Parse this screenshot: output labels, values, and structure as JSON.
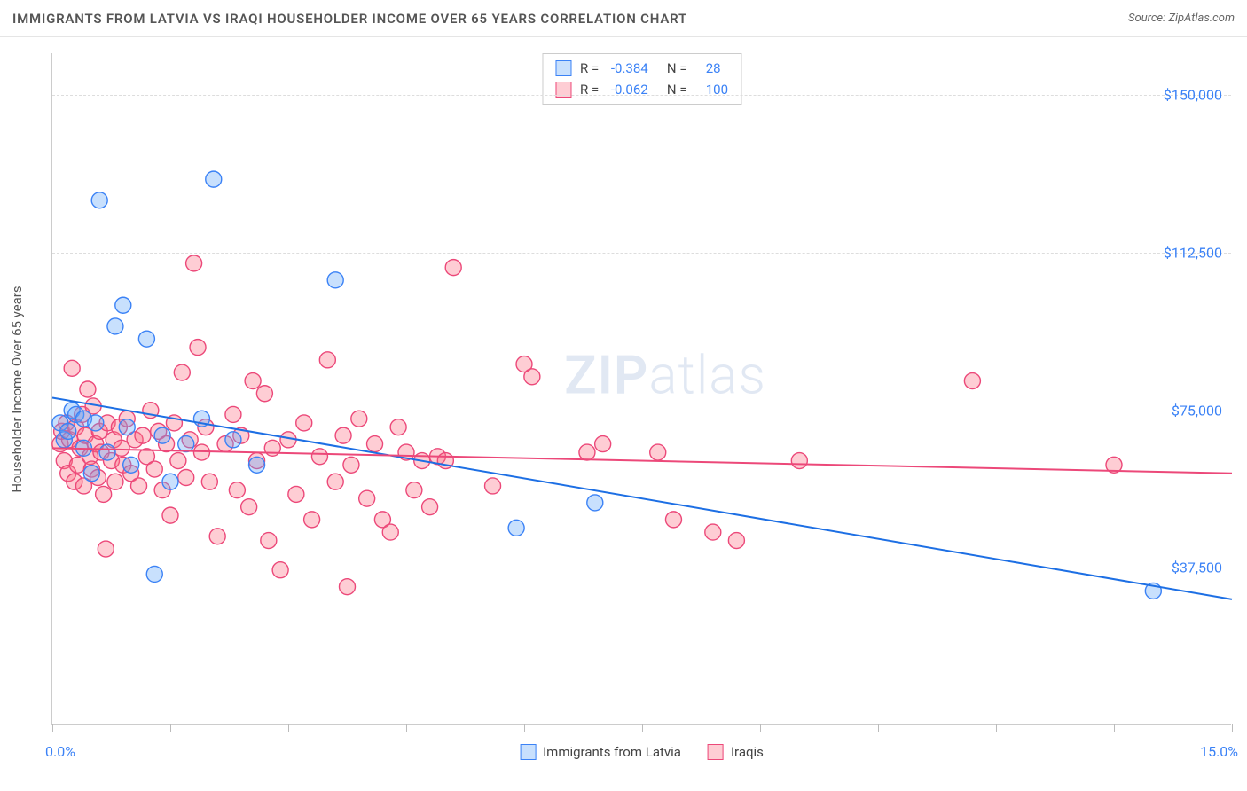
{
  "title": "IMMIGRANTS FROM LATVIA VS IRAQI HOUSEHOLDER INCOME OVER 65 YEARS CORRELATION CHART",
  "source_prefix": "Source: ",
  "source_name": "ZipAtlas.com",
  "watermark_a": "ZIP",
  "watermark_b": "atlas",
  "y_axis_title": "Householder Income Over 65 years",
  "chart": {
    "type": "scatter",
    "xlim": [
      0,
      15
    ],
    "ylim": [
      0,
      160000
    ],
    "x_tick_positions": [
      0,
      1.5,
      3,
      4.5,
      6,
      7.5,
      9,
      10.5,
      12,
      13.5,
      15
    ],
    "x_label_min": "0.0%",
    "x_label_max": "15.0%",
    "y_ticks": [
      {
        "v": 37500,
        "label": "$37,500"
      },
      {
        "v": 75000,
        "label": "$75,000"
      },
      {
        "v": 112500,
        "label": "$112,500"
      },
      {
        "v": 150000,
        "label": "$150,000"
      }
    ],
    "grid_color": "#dddddd",
    "axis_color": "#cccccc",
    "background_color": "#ffffff",
    "tick_label_color": "#3b82f6",
    "marker_radius": 9,
    "marker_stroke_width": 1.4,
    "trend_line_width": 2,
    "series": [
      {
        "name": "Immigrants from Latvia",
        "fill": "rgba(96,165,250,0.35)",
        "stroke": "#3b82f6",
        "trend_color": "#1d6fe4",
        "stats": {
          "R": "-0.384",
          "N": "28"
        },
        "trend": {
          "x1": 0,
          "y1": 78000,
          "x2": 15,
          "y2": 30000
        },
        "points": [
          [
            0.1,
            72000
          ],
          [
            0.15,
            68000
          ],
          [
            0.2,
            70000
          ],
          [
            0.25,
            75000
          ],
          [
            0.3,
            74000
          ],
          [
            0.4,
            66000
          ],
          [
            0.4,
            73000
          ],
          [
            0.5,
            60000
          ],
          [
            0.55,
            72000
          ],
          [
            0.6,
            125000
          ],
          [
            0.7,
            65000
          ],
          [
            0.8,
            95000
          ],
          [
            0.9,
            100000
          ],
          [
            0.95,
            71000
          ],
          [
            1.0,
            62000
          ],
          [
            1.2,
            92000
          ],
          [
            1.3,
            36000
          ],
          [
            1.4,
            69000
          ],
          [
            1.5,
            58000
          ],
          [
            1.7,
            67000
          ],
          [
            1.9,
            73000
          ],
          [
            2.05,
            130000
          ],
          [
            2.3,
            68000
          ],
          [
            2.6,
            62000
          ],
          [
            3.6,
            106000
          ],
          [
            5.9,
            47000
          ],
          [
            6.9,
            53000
          ],
          [
            14.0,
            32000
          ]
        ]
      },
      {
        "name": "Iraqis",
        "fill": "rgba(251,113,133,0.35)",
        "stroke": "#ec4879",
        "trend_color": "#ec4879",
        "stats": {
          "R": "-0.062",
          "N": "100"
        },
        "trend": {
          "x1": 0,
          "y1": 66000,
          "x2": 15,
          "y2": 60000
        },
        "points": [
          [
            0.1,
            67000
          ],
          [
            0.12,
            70000
          ],
          [
            0.15,
            63000
          ],
          [
            0.18,
            72000
          ],
          [
            0.2,
            60000
          ],
          [
            0.22,
            68000
          ],
          [
            0.25,
            85000
          ],
          [
            0.28,
            58000
          ],
          [
            0.3,
            71000
          ],
          [
            0.32,
            62000
          ],
          [
            0.35,
            66000
          ],
          [
            0.38,
            74000
          ],
          [
            0.4,
            57000
          ],
          [
            0.42,
            69000
          ],
          [
            0.45,
            80000
          ],
          [
            0.48,
            64000
          ],
          [
            0.5,
            61000
          ],
          [
            0.52,
            76000
          ],
          [
            0.55,
            67000
          ],
          [
            0.58,
            59000
          ],
          [
            0.6,
            70000
          ],
          [
            0.62,
            65000
          ],
          [
            0.65,
            55000
          ],
          [
            0.68,
            42000
          ],
          [
            0.7,
            72000
          ],
          [
            0.75,
            63000
          ],
          [
            0.78,
            68000
          ],
          [
            0.8,
            58000
          ],
          [
            0.85,
            71000
          ],
          [
            0.88,
            66000
          ],
          [
            0.9,
            62000
          ],
          [
            0.95,
            73000
          ],
          [
            1.0,
            60000
          ],
          [
            1.05,
            68000
          ],
          [
            1.1,
            57000
          ],
          [
            1.15,
            69000
          ],
          [
            1.2,
            64000
          ],
          [
            1.25,
            75000
          ],
          [
            1.3,
            61000
          ],
          [
            1.35,
            70000
          ],
          [
            1.4,
            56000
          ],
          [
            1.45,
            67000
          ],
          [
            1.5,
            50000
          ],
          [
            1.55,
            72000
          ],
          [
            1.6,
            63000
          ],
          [
            1.65,
            84000
          ],
          [
            1.7,
            59000
          ],
          [
            1.75,
            68000
          ],
          [
            1.8,
            110000
          ],
          [
            1.85,
            90000
          ],
          [
            1.9,
            65000
          ],
          [
            1.95,
            71000
          ],
          [
            2.0,
            58000
          ],
          [
            2.1,
            45000
          ],
          [
            2.2,
            67000
          ],
          [
            2.3,
            74000
          ],
          [
            2.35,
            56000
          ],
          [
            2.4,
            69000
          ],
          [
            2.5,
            52000
          ],
          [
            2.55,
            82000
          ],
          [
            2.6,
            63000
          ],
          [
            2.7,
            79000
          ],
          [
            2.75,
            44000
          ],
          [
            2.8,
            66000
          ],
          [
            2.9,
            37000
          ],
          [
            3.0,
            68000
          ],
          [
            3.1,
            55000
          ],
          [
            3.2,
            72000
          ],
          [
            3.3,
            49000
          ],
          [
            3.4,
            64000
          ],
          [
            3.5,
            87000
          ],
          [
            3.6,
            58000
          ],
          [
            3.7,
            69000
          ],
          [
            3.75,
            33000
          ],
          [
            3.8,
            62000
          ],
          [
            3.9,
            73000
          ],
          [
            4.0,
            54000
          ],
          [
            4.1,
            67000
          ],
          [
            4.2,
            49000
          ],
          [
            4.3,
            46000
          ],
          [
            4.4,
            71000
          ],
          [
            4.5,
            65000
          ],
          [
            4.6,
            56000
          ],
          [
            4.7,
            63000
          ],
          [
            4.8,
            52000
          ],
          [
            4.9,
            64000
          ],
          [
            5.0,
            63000
          ],
          [
            5.1,
            109000
          ],
          [
            5.6,
            57000
          ],
          [
            6.0,
            86000
          ],
          [
            6.1,
            83000
          ],
          [
            6.8,
            65000
          ],
          [
            7.0,
            67000
          ],
          [
            7.7,
            65000
          ],
          [
            7.9,
            49000
          ],
          [
            8.4,
            46000
          ],
          [
            8.7,
            44000
          ],
          [
            9.5,
            63000
          ],
          [
            11.7,
            82000
          ],
          [
            13.5,
            62000
          ]
        ]
      }
    ],
    "legend_labels": [
      "Immigrants from Latvia",
      "Iraqis"
    ]
  }
}
